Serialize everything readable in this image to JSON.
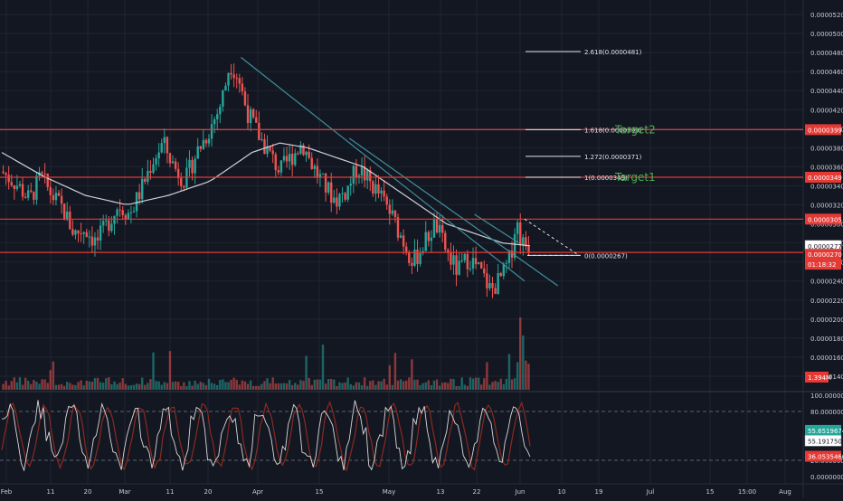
{
  "colors": {
    "background": "#131722",
    "grid": "#1f2432",
    "axis_text": "#c8ccd6",
    "candle_up": "#26a69a",
    "candle_down": "#ef5350",
    "ma_line": "#e0e3eb",
    "trendline": "#3f8f9a",
    "hline": "#e53935",
    "target_text": "#4caf50",
    "stoch_k": "#d8d8d8",
    "stoch_d": "#8b2a1f",
    "volume_up": "#26a69a",
    "volume_down": "#ef5350"
  },
  "chart_data": [
    {
      "type": "candlestick",
      "title": "",
      "xlabel": "",
      "ylabel": "",
      "ylim": [
        1.3e-05,
        5.3e-05
      ],
      "x_ticks": [
        "Feb",
        "11",
        "20",
        "Mar",
        "11",
        "20",
        "Apr",
        "15",
        "May",
        "13",
        "22",
        "Jun",
        "10",
        "19",
        "Jul",
        "15",
        "15:00",
        "Aug"
      ],
      "y_ticks": [
        "0.0000520",
        "0.0000500",
        "0.0000480",
        "0.0000460",
        "0.0000440",
        "0.0000420",
        "0.0000400",
        "0.0000380",
        "0.0000360",
        "0.0000340",
        "0.0000320",
        "0.0000300",
        "0.0000280",
        "0.0000260",
        "0.0000240",
        "0.0000220",
        "0.0000200",
        "0.0000180",
        "0.0000160",
        "0.0000140"
      ],
      "price_path": [
        [
          0,
          3.55e-05
        ],
        [
          6,
          3.4e-05
        ],
        [
          10,
          3.25e-05
        ],
        [
          14,
          3.5e-05
        ],
        [
          18,
          3.3e-05
        ],
        [
          22,
          3.15e-05
        ],
        [
          26,
          2.9e-05
        ],
        [
          30,
          2.95e-05
        ],
        [
          34,
          2.8e-05
        ],
        [
          38,
          3e-05
        ],
        [
          42,
          3.2e-05
        ],
        [
          46,
          3.1e-05
        ],
        [
          50,
          3.35e-05
        ],
        [
          54,
          3.65e-05
        ],
        [
          58,
          3.85e-05
        ],
        [
          62,
          3.6e-05
        ],
        [
          66,
          3.45e-05
        ],
        [
          70,
          3.75e-05
        ],
        [
          74,
          3.95e-05
        ],
        [
          78,
          4.2e-05
        ],
        [
          80,
          4.4e-05
        ],
        [
          82,
          4.7e-05
        ],
        [
          85,
          4.55e-05
        ],
        [
          88,
          4.2e-05
        ],
        [
          92,
          3.95e-05
        ],
        [
          96,
          3.75e-05
        ],
        [
          100,
          3.55e-05
        ],
        [
          104,
          3.7e-05
        ],
        [
          108,
          3.85e-05
        ],
        [
          112,
          3.6e-05
        ],
        [
          116,
          3.4e-05
        ],
        [
          120,
          3.25e-05
        ],
        [
          124,
          3.35e-05
        ],
        [
          128,
          3.6e-05
        ],
        [
          132,
          3.45e-05
        ],
        [
          136,
          3.3e-05
        ],
        [
          140,
          3.1e-05
        ],
        [
          144,
          2.85e-05
        ],
        [
          148,
          2.6e-05
        ],
        [
          152,
          2.8e-05
        ],
        [
          156,
          3e-05
        ],
        [
          160,
          2.7e-05
        ],
        [
          164,
          2.5e-05
        ],
        [
          168,
          2.65e-05
        ],
        [
          172,
          2.5e-05
        ],
        [
          176,
          2.3e-05
        ],
        [
          180,
          2.45e-05
        ],
        [
          183,
          2.65e-05
        ],
        [
          185,
          3.05e-05
        ],
        [
          187,
          2.8e-05
        ],
        [
          190,
          2.77e-05
        ]
      ],
      "ma_path": [
        [
          0,
          3.75e-05
        ],
        [
          15,
          3.5e-05
        ],
        [
          30,
          3.3e-05
        ],
        [
          45,
          3.2e-05
        ],
        [
          60,
          3.3e-05
        ],
        [
          75,
          3.45e-05
        ],
        [
          90,
          3.75e-05
        ],
        [
          100,
          3.85e-05
        ],
        [
          110,
          3.8e-05
        ],
        [
          120,
          3.7e-05
        ],
        [
          130,
          3.6e-05
        ],
        [
          140,
          3.4e-05
        ],
        [
          150,
          3.2e-05
        ],
        [
          160,
          3e-05
        ],
        [
          170,
          2.9e-05
        ],
        [
          180,
          2.8e-05
        ],
        [
          190,
          2.77e-05
        ]
      ],
      "trendlines": [
        {
          "from": [
            86,
            4.75e-05
          ],
          "to": [
            188,
            2.4e-05
          ]
        },
        {
          "from": [
            125,
            3.9e-05
          ],
          "to": [
            200,
            2.35e-05
          ]
        },
        {
          "from": [
            170,
            3.1e-05
          ],
          "to": [
            186,
            2.8e-05
          ]
        }
      ],
      "horizontal_lines": [
        {
          "price": 3.99e-05,
          "label": "0.0000399"
        },
        {
          "price": 3.49e-05,
          "label": "0.0000349"
        },
        {
          "price": 3.05e-05,
          "label": "0.0000305"
        },
        {
          "price": 2.7e-05,
          "label": "0.0000270"
        }
      ],
      "fib_levels": [
        {
          "level": "2.618",
          "price": "0.0000481",
          "text": "2.618(0.0000481)"
        },
        {
          "level": "1.618",
          "price": "0.0000399",
          "text": "1.618(0.0000399)"
        },
        {
          "level": "1.272",
          "price": "0.0000371",
          "text": "1.272(0.0000371)"
        },
        {
          "level": "1",
          "price": "0.0000349",
          "text": "1(0.0000349)"
        },
        {
          "level": "0",
          "price": "0.0000267",
          "text": "0(0.0000267)"
        }
      ],
      "annotations": [
        "Target2",
        "Target1"
      ],
      "price_badges": [
        {
          "text": "0.0000399",
          "type": "red"
        },
        {
          "text": "0.0000349",
          "type": "red"
        },
        {
          "text": "0.0000305",
          "type": "red"
        },
        {
          "text": "0.0000277",
          "type": "white"
        },
        {
          "text": "0.0000270",
          "type": "red"
        },
        {
          "text": "01:18:32",
          "type": "red"
        }
      ],
      "volume_badge": "1.394M"
    },
    {
      "type": "line",
      "title": "",
      "ylim": [
        0,
        100
      ],
      "y_ticks": [
        "100.0000000",
        "80.0000000",
        "20.0000000",
        "0.0000000"
      ],
      "bands": [
        80,
        20
      ],
      "badges": [
        {
          "text": "55.6519674",
          "type": "green"
        },
        {
          "text": "55.1917500",
          "type": "white"
        },
        {
          "text": "36.0535460",
          "type": "red"
        }
      ]
    }
  ]
}
